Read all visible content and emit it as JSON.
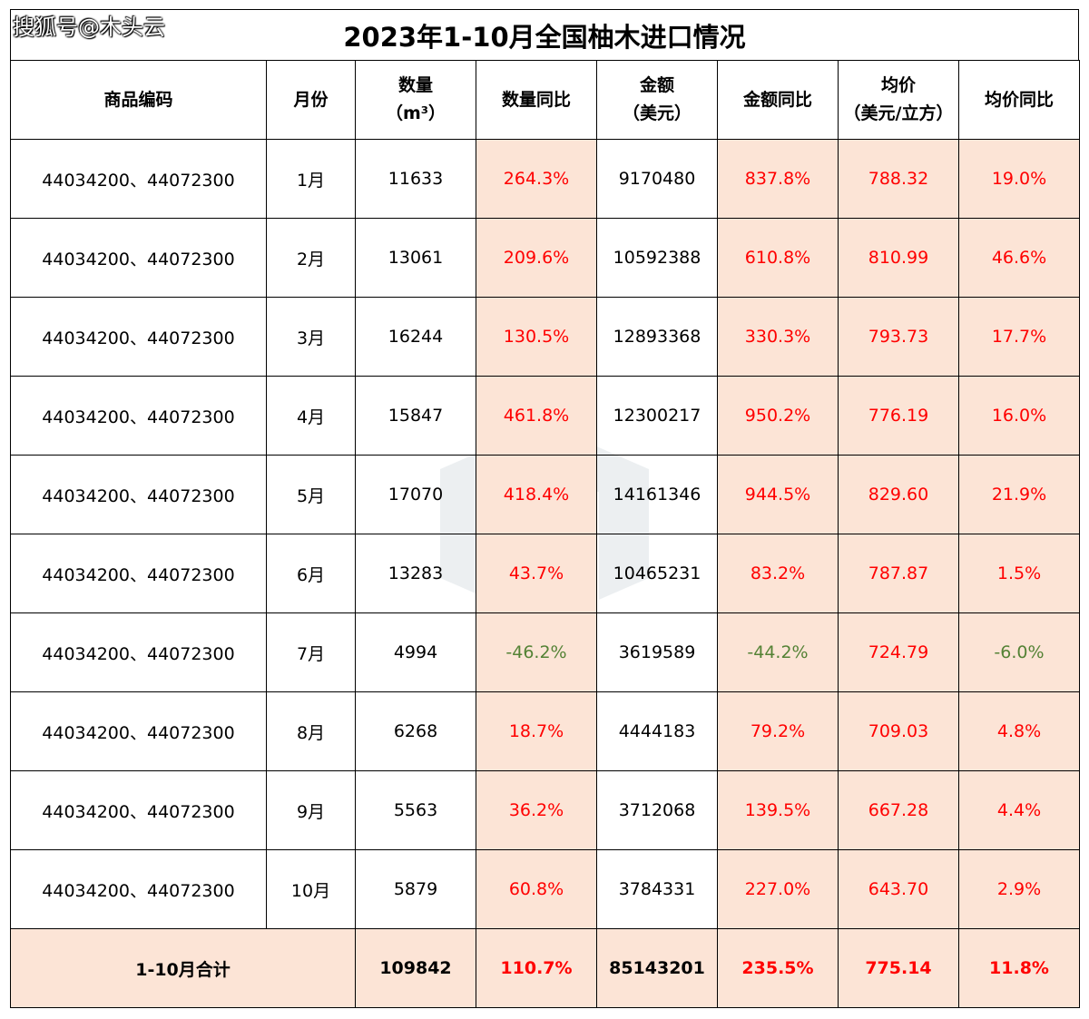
{
  "watermark": "搜狐号@木头云",
  "title": "2023年1-10月全国柚木进口情况",
  "headers": {
    "code": "商品编码",
    "month": "月份",
    "qty_line1": "数量",
    "qty_line2": "（m³）",
    "qty_yoy": "数量同比",
    "amt_line1": "金额",
    "amt_line2": "（美元）",
    "amt_yoy": "金额同比",
    "price_line1": "均价",
    "price_line2": "（美元/立方）",
    "price_yoy": "均价同比"
  },
  "rows": [
    {
      "code": "44034200、44072300",
      "month": "1月",
      "qty": "11633",
      "qty_yoy": "264.3%",
      "amt": "9170480",
      "amt_yoy": "837.8%",
      "price": "788.32",
      "price_yoy": "19.0%"
    },
    {
      "code": "44034200、44072300",
      "month": "2月",
      "qty": "13061",
      "qty_yoy": "209.6%",
      "amt": "10592388",
      "amt_yoy": "610.8%",
      "price": "810.99",
      "price_yoy": "46.6%"
    },
    {
      "code": "44034200、44072300",
      "month": "3月",
      "qty": "16244",
      "qty_yoy": "130.5%",
      "amt": "12893368",
      "amt_yoy": "330.3%",
      "price": "793.73",
      "price_yoy": "17.7%"
    },
    {
      "code": "44034200、44072300",
      "month": "4月",
      "qty": "15847",
      "qty_yoy": "461.8%",
      "amt": "12300217",
      "amt_yoy": "950.2%",
      "price": "776.19",
      "price_yoy": "16.0%"
    },
    {
      "code": "44034200、44072300",
      "month": "5月",
      "qty": "17070",
      "qty_yoy": "418.4%",
      "amt": "14161346",
      "amt_yoy": "944.5%",
      "price": "829.60",
      "price_yoy": "21.9%"
    },
    {
      "code": "44034200、44072300",
      "month": "6月",
      "qty": "13283",
      "qty_yoy": "43.7%",
      "amt": "10465231",
      "amt_yoy": "83.2%",
      "price": "787.87",
      "price_yoy": "1.5%"
    },
    {
      "code": "44034200、44072300",
      "month": "7月",
      "qty": "4994",
      "qty_yoy": "-46.2%",
      "amt": "3619589",
      "amt_yoy": "-44.2%",
      "price": "724.79",
      "price_yoy": "-6.0%"
    },
    {
      "code": "44034200、44072300",
      "month": "8月",
      "qty": "6268",
      "qty_yoy": "18.7%",
      "amt": "4444183",
      "amt_yoy": "79.2%",
      "price": "709.03",
      "price_yoy": "4.8%"
    },
    {
      "code": "44034200、44072300",
      "month": "9月",
      "qty": "5563",
      "qty_yoy": "36.2%",
      "amt": "3712068",
      "amt_yoy": "139.5%",
      "price": "667.28",
      "price_yoy": "4.4%"
    },
    {
      "code": "44034200、44072300",
      "month": "10月",
      "qty": "5879",
      "qty_yoy": "60.8%",
      "amt": "3784331",
      "amt_yoy": "227.0%",
      "price": "643.70",
      "price_yoy": "2.9%"
    }
  ],
  "total": {
    "label": "1-10月合计",
    "qty": "109842",
    "qty_yoy": "110.7%",
    "amt": "85143201",
    "amt_yoy": "235.5%",
    "price": "775.14",
    "price_yoy": "11.8%"
  },
  "colors": {
    "positive": "#ff0000",
    "negative": "#548235",
    "highlight_bg": "#fce4d6"
  }
}
